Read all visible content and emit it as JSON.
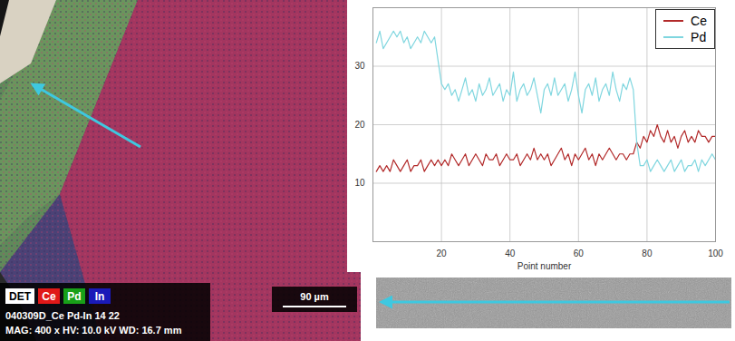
{
  "chart_data": {
    "type": "line",
    "x_label": "Point number",
    "x": [
      1,
      2,
      3,
      4,
      5,
      6,
      7,
      8,
      9,
      10,
      11,
      12,
      13,
      14,
      15,
      16,
      17,
      18,
      19,
      20,
      21,
      22,
      23,
      24,
      25,
      26,
      27,
      28,
      29,
      30,
      31,
      32,
      33,
      34,
      35,
      36,
      37,
      38,
      39,
      40,
      41,
      42,
      43,
      44,
      45,
      46,
      47,
      48,
      49,
      50,
      51,
      52,
      53,
      54,
      55,
      56,
      57,
      58,
      59,
      60,
      61,
      62,
      63,
      64,
      65,
      66,
      67,
      68,
      69,
      70,
      71,
      72,
      73,
      74,
      75,
      76,
      77,
      78,
      79,
      80,
      81,
      82,
      83,
      84,
      85,
      86,
      87,
      88,
      89,
      90,
      91,
      92,
      93,
      94,
      95,
      96,
      97,
      98,
      99,
      100
    ],
    "series": [
      {
        "name": "Ce",
        "color": "#b22a2a",
        "values": [
          12,
          13,
          12,
          13,
          12,
          14,
          13,
          12,
          13,
          14,
          12,
          13,
          13,
          14,
          12,
          13,
          14,
          13,
          14,
          13,
          14,
          13,
          15,
          14,
          13,
          14,
          15,
          13,
          14,
          15,
          14,
          13,
          15,
          14,
          14,
          15,
          13,
          14,
          15,
          14,
          14,
          15,
          13,
          14,
          15,
          14,
          16,
          14,
          15,
          14,
          15,
          13,
          14,
          15,
          16,
          14,
          15,
          13,
          15,
          14,
          15,
          16,
          14,
          15,
          13,
          15,
          14,
          15,
          16,
          15,
          14,
          15,
          15,
          14,
          15,
          15,
          17,
          16,
          18,
          17,
          19,
          18,
          20,
          18,
          17,
          19,
          17,
          18,
          16,
          18,
          19,
          17,
          18,
          17,
          19,
          18,
          18,
          17,
          18,
          18
        ]
      },
      {
        "name": "Pd",
        "color": "#7fd6df",
        "values": [
          34,
          36,
          33,
          34,
          35,
          36,
          35,
          36,
          34,
          35,
          33,
          34,
          35,
          34,
          36,
          35,
          34,
          35,
          31,
          27,
          26,
          27,
          25,
          26,
          24,
          26,
          28,
          25,
          26,
          24,
          27,
          25,
          26,
          28,
          25,
          26,
          27,
          24,
          26,
          25,
          29,
          24,
          26,
          27,
          25,
          26,
          28,
          25,
          22,
          26,
          27,
          25,
          28,
          25,
          26,
          27,
          24,
          26,
          29,
          25,
          22,
          26,
          27,
          25,
          28,
          24,
          26,
          27,
          25,
          29,
          26,
          24,
          27,
          26,
          28,
          26,
          17,
          13,
          13,
          14,
          12,
          13,
          14,
          13,
          12,
          13,
          14,
          12,
          13,
          14,
          12,
          13,
          13,
          14,
          12,
          14,
          13,
          14,
          15,
          14
        ]
      }
    ],
    "xlim": [
      0,
      100
    ],
    "xticks": [
      20,
      40,
      60,
      80,
      100
    ],
    "ylim": [
      0,
      40
    ],
    "yticks": [
      10,
      20,
      30
    ],
    "grid": true,
    "legend": "top-right"
  },
  "micrograph": {
    "channels": [
      {
        "label": "DET",
        "color": "#ffffff"
      },
      {
        "label": "Ce",
        "color": "#e01818"
      },
      {
        "label": "Pd",
        "color": "#18a018"
      },
      {
        "label": "In",
        "color": "#1a1ab8"
      }
    ],
    "sample": "040309D_Ce Pd-In 14 22",
    "settings": "MAG: 400 x   HV: 10.0 kV   WD: 16.7 mm",
    "scale_bar": "90 µm"
  }
}
